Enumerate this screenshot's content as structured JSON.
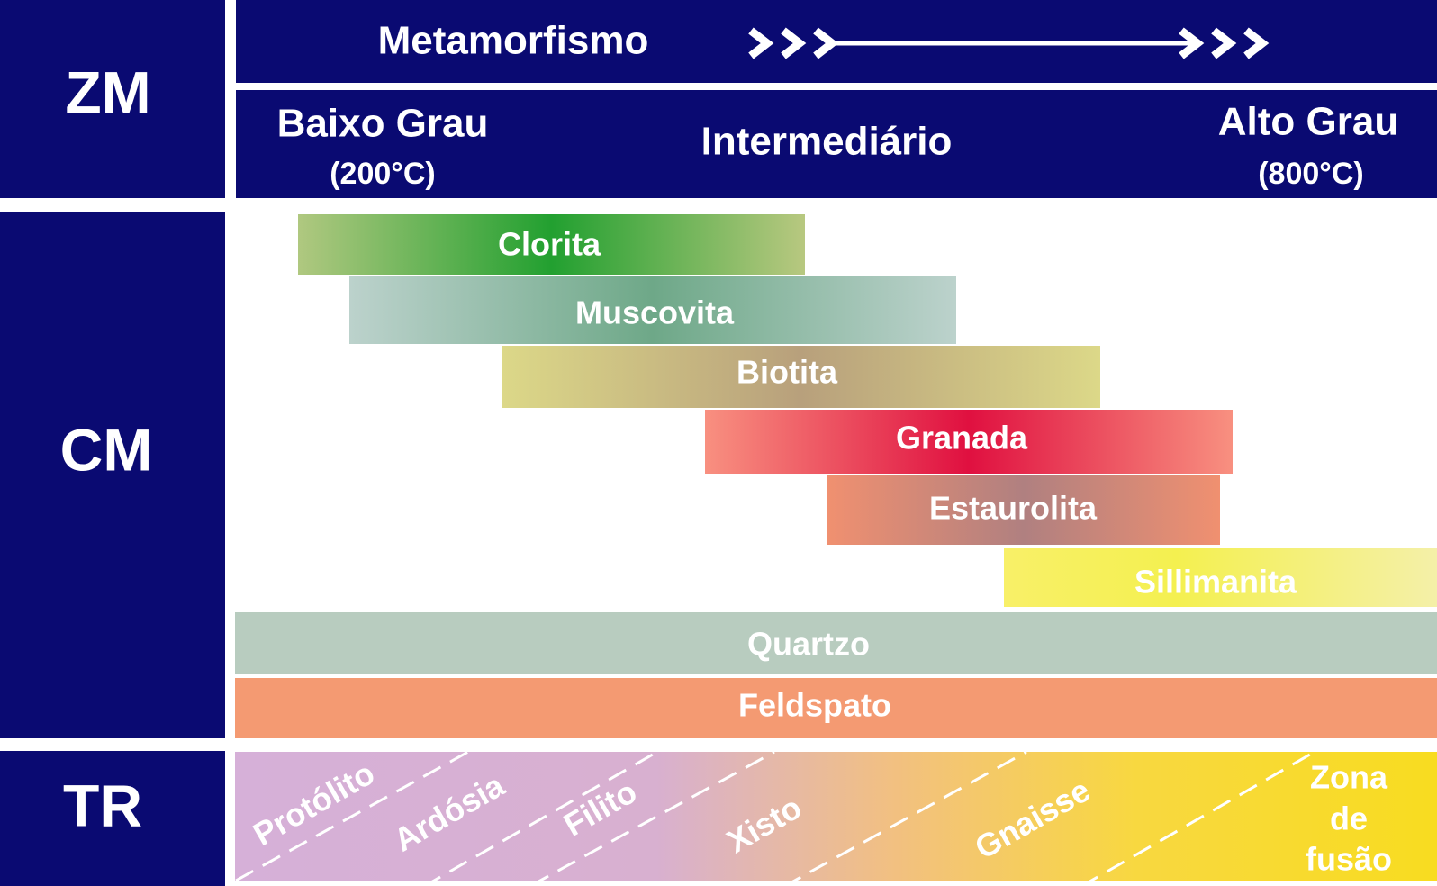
{
  "zm": {
    "label": "ZM",
    "title": "Metamorfismo",
    "low": "Baixo Grau",
    "low_temp": "(200°C)",
    "mid": "Intermediário",
    "high": "Alto Grau",
    "high_temp": "(800°C)"
  },
  "cm": {
    "label": "CM",
    "minerals": [
      "Clorita",
      "Muscovita",
      "Biotita",
      "Granada",
      "Estaurolita",
      "Sillimanita",
      "Quartzo",
      "Feldspato"
    ]
  },
  "tr": {
    "label": "TR",
    "rocks": [
      "Protólito",
      "Ardósia",
      "Filito",
      "Xisto",
      "Gnaisse"
    ],
    "melt": [
      "Zona",
      "de",
      "fusão"
    ]
  }
}
